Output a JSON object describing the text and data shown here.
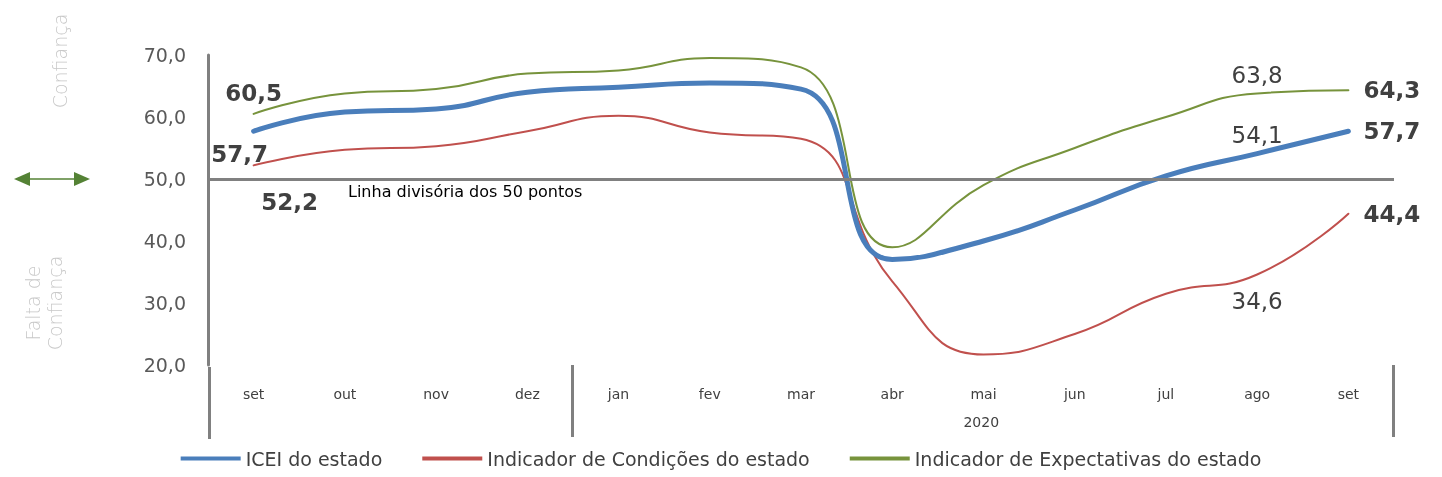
{
  "chart_data": {
    "type": "line",
    "categories": [
      "set",
      "out",
      "nov",
      "dez",
      "jan",
      "fev",
      "mar",
      "abr",
      "mai",
      "jun",
      "jul",
      "ago",
      "set"
    ],
    "ylim": [
      20,
      70
    ],
    "yticks": [
      {
        "value": 20,
        "label": "20,0"
      },
      {
        "value": 30,
        "label": "30,0"
      },
      {
        "value": 40,
        "label": "40,0"
      },
      {
        "value": 50,
        "label": "50,0"
      },
      {
        "value": 60,
        "label": "60,0"
      },
      {
        "value": 70,
        "label": "70,0"
      }
    ],
    "series": [
      {
        "name": "ICEI do estado",
        "color": "#4a7ebb",
        "values": [
          57.7,
          60.8,
          61.3,
          64.0,
          64.8,
          65.5,
          64.5,
          37.0,
          40.0,
          45.0,
          50.5,
          54.1,
          57.7
        ],
        "value_labels": [
          "57,7",
          null,
          null,
          null,
          null,
          null,
          null,
          null,
          null,
          null,
          null,
          "54,1",
          "57,7"
        ]
      },
      {
        "name": "Indicador de Condições do estado",
        "color": "#c0504d",
        "values": [
          52.2,
          54.7,
          55.3,
          57.7,
          60.2,
          57.5,
          56.5,
          33.5,
          21.7,
          25.0,
          31.5,
          34.6,
          44.4
        ],
        "value_labels": [
          "52,2",
          null,
          null,
          null,
          null,
          null,
          null,
          null,
          null,
          null,
          null,
          "34,6",
          "44,4"
        ]
      },
      {
        "name": "Indicador de Expectativas do estado",
        "color": "#77933c",
        "values": [
          60.5,
          63.8,
          64.5,
          67.0,
          67.5,
          69.5,
          68.0,
          39.0,
          49.0,
          55.0,
          60.0,
          63.8,
          64.3
        ],
        "value_labels": [
          "60,5",
          null,
          null,
          null,
          null,
          null,
          null,
          null,
          null,
          null,
          null,
          "63,8",
          "64,3"
        ]
      }
    ],
    "ref_lines": [
      {
        "axis": "y",
        "value": 50,
        "label": "Linha divisória dos 50 pontos",
        "color": "#808080"
      }
    ],
    "annotations": [
      "2020",
      "Confiança",
      "Falta de Confiança"
    ],
    "legend": "bottom"
  }
}
